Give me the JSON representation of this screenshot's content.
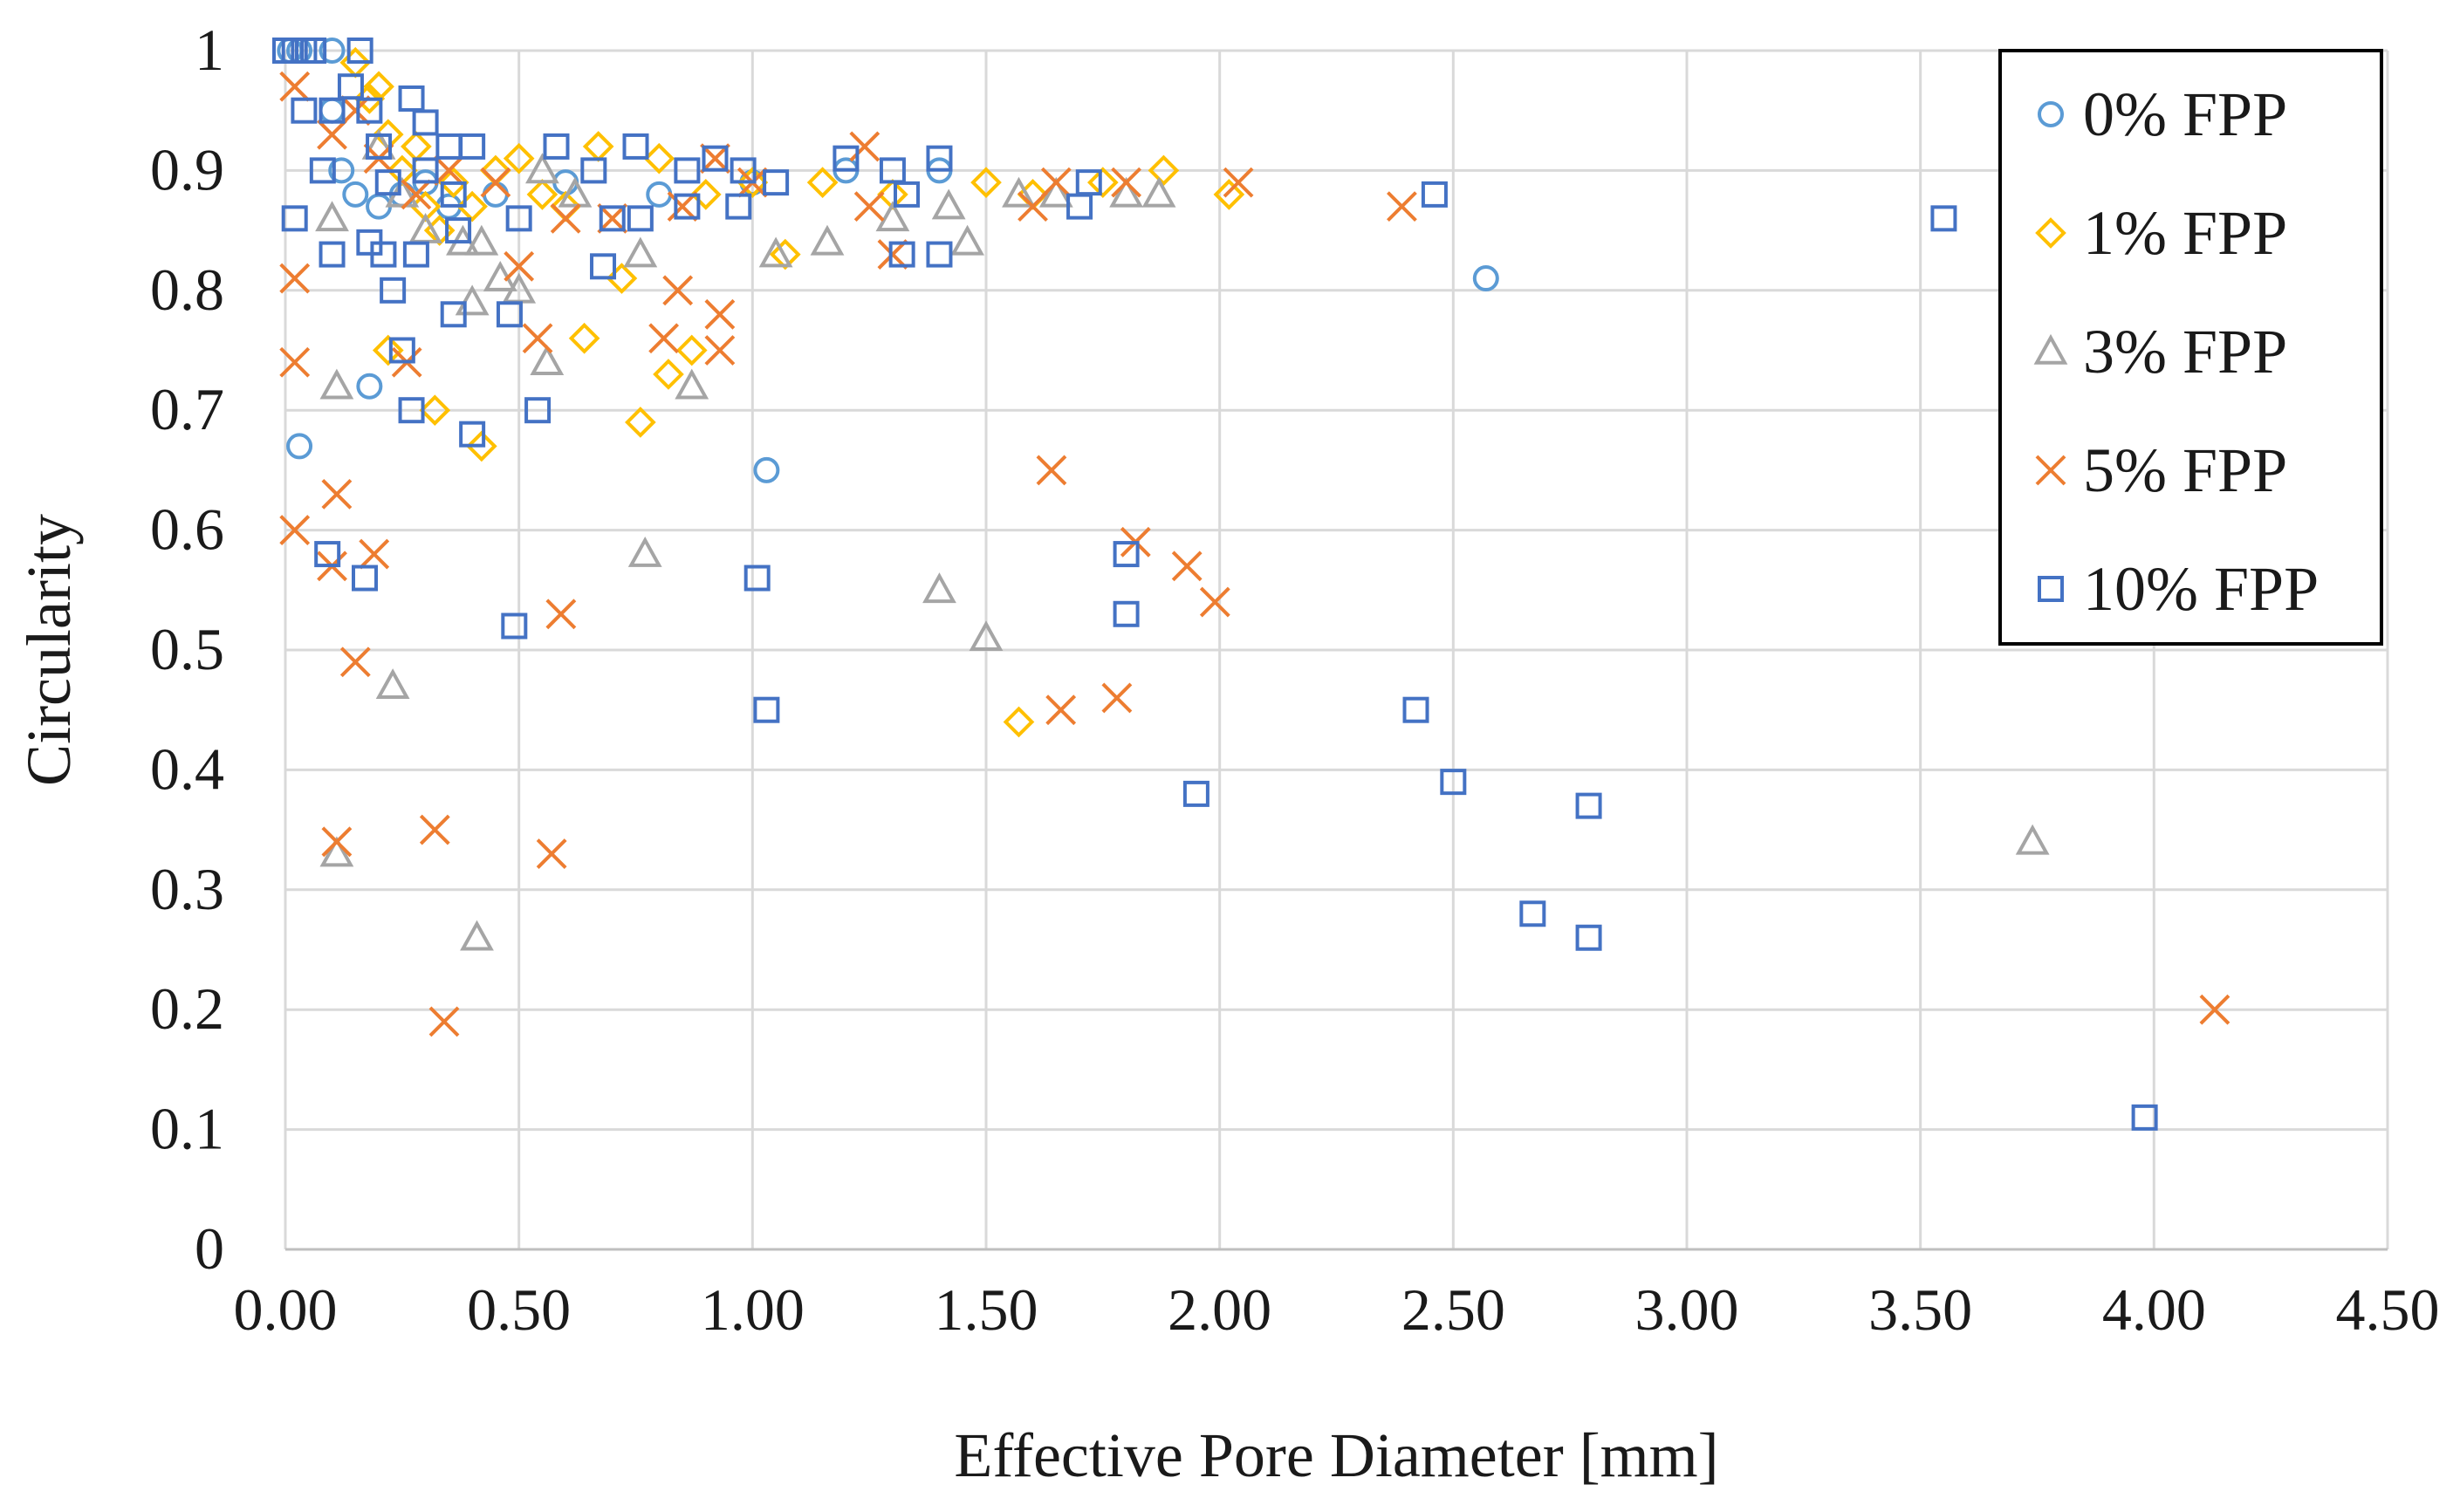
{
  "chart_data": {
    "type": "scatter",
    "title": "",
    "xlabel": "Effective Pore Diameter [mm]",
    "ylabel": "Circularity",
    "xlim": [
      0,
      4.5
    ],
    "ylim": [
      0,
      1
    ],
    "x_ticks": [
      "0.00",
      "0.50",
      "1.00",
      "1.50",
      "2.00",
      "2.50",
      "3.00",
      "3.50",
      "4.00",
      "4.50"
    ],
    "y_ticks": [
      "0",
      "0.1",
      "0.2",
      "0.3",
      "0.4",
      "0.5",
      "0.6",
      "0.7",
      "0.8",
      "0.9",
      "1"
    ],
    "grid": true,
    "legend_position": "top-right",
    "series": [
      {
        "name": "0% FPP",
        "marker": "circle",
        "color": "#5b9bd5",
        "points": [
          [
            0.01,
            1
          ],
          [
            0.03,
            1
          ],
          [
            0.1,
            1
          ],
          [
            0.1,
            0.95
          ],
          [
            0.12,
            0.9
          ],
          [
            0.15,
            0.88
          ],
          [
            0.2,
            0.87
          ],
          [
            0.25,
            0.88
          ],
          [
            0.3,
            0.89
          ],
          [
            0.35,
            0.87
          ],
          [
            0.45,
            0.88
          ],
          [
            0.6,
            0.89
          ],
          [
            0.8,
            0.88
          ],
          [
            1.0,
            0.89
          ],
          [
            1.2,
            0.9
          ],
          [
            1.4,
            0.9
          ],
          [
            2.57,
            0.81
          ],
          [
            0.03,
            0.67
          ],
          [
            0.18,
            0.72
          ],
          [
            1.03,
            0.65
          ]
        ]
      },
      {
        "name": "1% FPP",
        "marker": "diamond",
        "color": "#ffc000",
        "points": [
          [
            0.15,
            0.99
          ],
          [
            0.18,
            0.96
          ],
          [
            0.2,
            0.97
          ],
          [
            0.22,
            0.93
          ],
          [
            0.25,
            0.9
          ],
          [
            0.28,
            0.92
          ],
          [
            0.3,
            0.87
          ],
          [
            0.33,
            0.85
          ],
          [
            0.36,
            0.89
          ],
          [
            0.4,
            0.87
          ],
          [
            0.45,
            0.9
          ],
          [
            0.5,
            0.91
          ],
          [
            0.55,
            0.88
          ],
          [
            0.6,
            0.87
          ],
          [
            0.67,
            0.92
          ],
          [
            0.72,
            0.81
          ],
          [
            0.8,
            0.91
          ],
          [
            0.9,
            0.88
          ],
          [
            1.0,
            0.89
          ],
          [
            1.07,
            0.83
          ],
          [
            1.15,
            0.89
          ],
          [
            1.3,
            0.88
          ],
          [
            1.5,
            0.89
          ],
          [
            1.6,
            0.88
          ],
          [
            1.75,
            0.89
          ],
          [
            1.88,
            0.9
          ],
          [
            2.02,
            0.88
          ],
          [
            0.22,
            0.75
          ],
          [
            0.32,
            0.7
          ],
          [
            0.42,
            0.67
          ],
          [
            0.64,
            0.76
          ],
          [
            0.76,
            0.69
          ],
          [
            0.82,
            0.73
          ],
          [
            0.87,
            0.75
          ],
          [
            1.57,
            0.44
          ]
        ]
      },
      {
        "name": "3% FPP",
        "marker": "triangle",
        "color": "#a5a5a5",
        "points": [
          [
            0.1,
            0.86
          ],
          [
            0.2,
            0.92
          ],
          [
            0.25,
            0.88
          ],
          [
            0.3,
            0.85
          ],
          [
            0.38,
            0.84
          ],
          [
            0.42,
            0.84
          ],
          [
            0.46,
            0.81
          ],
          [
            0.5,
            0.8
          ],
          [
            0.55,
            0.9
          ],
          [
            0.62,
            0.88
          ],
          [
            0.76,
            0.83
          ],
          [
            1.05,
            0.83
          ],
          [
            1.16,
            0.84
          ],
          [
            1.3,
            0.86
          ],
          [
            1.42,
            0.87
          ],
          [
            1.46,
            0.84
          ],
          [
            1.57,
            0.88
          ],
          [
            1.65,
            0.88
          ],
          [
            1.8,
            0.88
          ],
          [
            1.87,
            0.88
          ],
          [
            0.4,
            0.79
          ],
          [
            0.56,
            0.74
          ],
          [
            0.87,
            0.72
          ],
          [
            0.11,
            0.72
          ],
          [
            0.77,
            0.58
          ],
          [
            1.4,
            0.55
          ],
          [
            1.5,
            0.51
          ],
          [
            0.23,
            0.47
          ],
          [
            0.11,
            0.33
          ],
          [
            0.41,
            0.26
          ],
          [
            3.74,
            0.34
          ]
        ]
      },
      {
        "name": "5% FPP",
        "marker": "x",
        "color": "#ed7d31",
        "points": [
          [
            0.02,
            0.97
          ],
          [
            0.1,
            0.93
          ],
          [
            0.15,
            0.95
          ],
          [
            0.2,
            0.91
          ],
          [
            0.28,
            0.88
          ],
          [
            0.35,
            0.9
          ],
          [
            0.45,
            0.89
          ],
          [
            0.5,
            0.82
          ],
          [
            0.6,
            0.86
          ],
          [
            0.7,
            0.86
          ],
          [
            0.85,
            0.87
          ],
          [
            0.92,
            0.91
          ],
          [
            1.0,
            0.89
          ],
          [
            1.24,
            0.92
          ],
          [
            1.25,
            0.87
          ],
          [
            1.3,
            0.83
          ],
          [
            1.6,
            0.87
          ],
          [
            1.65,
            0.89
          ],
          [
            1.8,
            0.89
          ],
          [
            2.04,
            0.89
          ],
          [
            2.39,
            0.87
          ],
          [
            0.02,
            0.81
          ],
          [
            0.02,
            0.74
          ],
          [
            0.26,
            0.74
          ],
          [
            0.54,
            0.76
          ],
          [
            0.81,
            0.76
          ],
          [
            0.84,
            0.8
          ],
          [
            0.93,
            0.75
          ],
          [
            0.93,
            0.78
          ],
          [
            0.02,
            0.6
          ],
          [
            0.1,
            0.57
          ],
          [
            0.11,
            0.63
          ],
          [
            0.19,
            0.58
          ],
          [
            1.64,
            0.65
          ],
          [
            1.82,
            0.59
          ],
          [
            1.93,
            0.57
          ],
          [
            1.99,
            0.54
          ],
          [
            0.15,
            0.49
          ],
          [
            0.59,
            0.53
          ],
          [
            1.66,
            0.45
          ],
          [
            1.78,
            0.46
          ],
          [
            0.11,
            0.34
          ],
          [
            0.32,
            0.35
          ],
          [
            0.57,
            0.33
          ],
          [
            0.34,
            0.19
          ],
          [
            4.13,
            0.2
          ]
        ]
      },
      {
        "name": "10% FPP",
        "marker": "square",
        "color": "#4472c4",
        "points": [
          [
            0.0,
            1
          ],
          [
            0.02,
            1
          ],
          [
            0.04,
            1
          ],
          [
            0.06,
            1
          ],
          [
            0.16,
            1
          ],
          [
            0.14,
            0.97
          ],
          [
            0.18,
            0.95
          ],
          [
            0.2,
            0.92
          ],
          [
            0.27,
            0.96
          ],
          [
            0.3,
            0.94
          ],
          [
            0.35,
            0.92
          ],
          [
            0.4,
            0.92
          ],
          [
            0.04,
            0.95
          ],
          [
            0.1,
            0.95
          ],
          [
            0.08,
            0.9
          ],
          [
            0.22,
            0.89
          ],
          [
            0.3,
            0.9
          ],
          [
            0.36,
            0.88
          ],
          [
            0.5,
            0.86
          ],
          [
            0.58,
            0.92
          ],
          [
            0.66,
            0.9
          ],
          [
            0.75,
            0.92
          ],
          [
            0.86,
            0.9
          ],
          [
            0.92,
            0.91
          ],
          [
            0.98,
            0.9
          ],
          [
            1.05,
            0.89
          ],
          [
            1.2,
            0.91
          ],
          [
            1.3,
            0.9
          ],
          [
            1.4,
            0.91
          ],
          [
            1.72,
            0.89
          ],
          [
            1.33,
            0.88
          ],
          [
            0.02,
            0.86
          ],
          [
            0.1,
            0.83
          ],
          [
            0.18,
            0.84
          ],
          [
            0.21,
            0.83
          ],
          [
            0.28,
            0.83
          ],
          [
            0.23,
            0.8
          ],
          [
            0.37,
            0.85
          ],
          [
            0.68,
            0.82
          ],
          [
            0.7,
            0.86
          ],
          [
            0.76,
            0.86
          ],
          [
            0.86,
            0.87
          ],
          [
            0.97,
            0.87
          ],
          [
            1.32,
            0.83
          ],
          [
            1.4,
            0.83
          ],
          [
            1.7,
            0.87
          ],
          [
            2.46,
            0.88
          ],
          [
            3.55,
            0.86
          ],
          [
            0.36,
            0.78
          ],
          [
            0.48,
            0.78
          ],
          [
            0.25,
            0.75
          ],
          [
            0.27,
            0.7
          ],
          [
            0.4,
            0.68
          ],
          [
            0.54,
            0.7
          ],
          [
            0.09,
            0.58
          ],
          [
            0.17,
            0.56
          ],
          [
            0.49,
            0.52
          ],
          [
            1.01,
            0.56
          ],
          [
            1.8,
            0.58
          ],
          [
            1.8,
            0.53
          ],
          [
            1.03,
            0.45
          ],
          [
            1.95,
            0.38
          ],
          [
            2.42,
            0.45
          ],
          [
            2.5,
            0.39
          ],
          [
            2.67,
            0.28
          ],
          [
            2.79,
            0.37
          ],
          [
            2.79,
            0.26
          ],
          [
            3.98,
            0.11
          ]
        ]
      }
    ]
  }
}
